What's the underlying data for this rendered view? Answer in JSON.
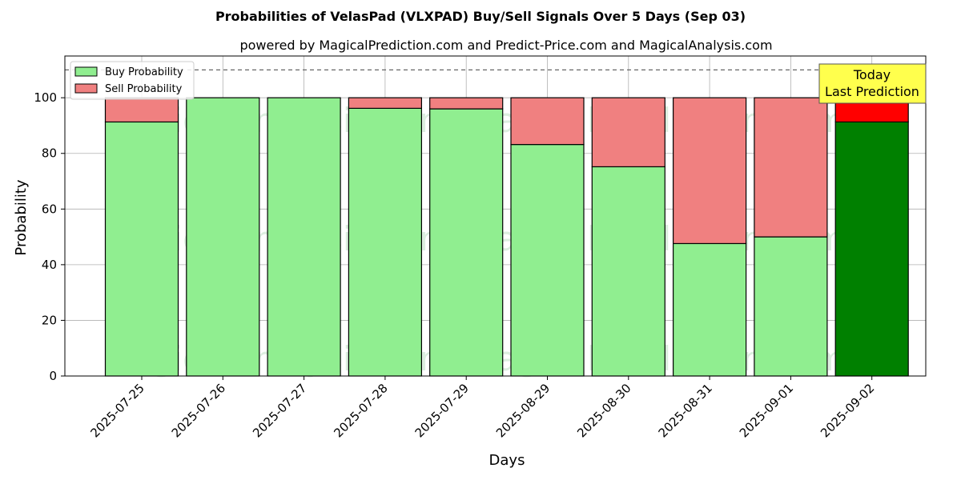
{
  "chart_data": {
    "type": "bar",
    "stacked": true,
    "title": "Probabilities of VelasPad (VLXPAD) Buy/Sell Signals Over 5 Days (Sep 03)",
    "subtitle": "powered by MagicalPrediction.com and Predict-Price.com and MagicalAnalysis.com",
    "xlabel": "Days",
    "ylabel": "Probability",
    "ylim": [
      0,
      115
    ],
    "yticks": [
      0,
      20,
      40,
      60,
      80,
      100
    ],
    "grid": true,
    "legend_position": "top-left",
    "categories": [
      "2025-07-25",
      "2025-07-26",
      "2025-07-27",
      "2025-07-28",
      "2025-07-29",
      "2025-08-29",
      "2025-08-30",
      "2025-08-31",
      "2025-09-01",
      "2025-09-02"
    ],
    "series": [
      {
        "name": "Buy Probability",
        "values": [
          91.3,
          100,
          100,
          96.2,
          96.0,
          83.2,
          75.2,
          47.6,
          50.0,
          91.3
        ],
        "color": "#90ee90",
        "highlight_color": "#008000"
      },
      {
        "name": "Sell Probability",
        "values": [
          8.7,
          0,
          0,
          3.8,
          4.0,
          16.8,
          24.8,
          52.4,
          50.0,
          8.7
        ],
        "color": "#f08080",
        "highlight_color": "#ff0000"
      }
    ],
    "highlight_index": 9,
    "reference_line": {
      "y": 110,
      "style": "dashed"
    },
    "annotation": {
      "lines": [
        "Today",
        "Last Prediction"
      ],
      "box_color": "#ffff4d"
    },
    "watermarks": [
      "MagicalAnalysis.com",
      "MagicalPrediction.com",
      "MagicalAnalysis.com",
      "MagicalPrediction.com",
      "MagicalAnalysis.com",
      "MagicalPrediction.com"
    ]
  }
}
